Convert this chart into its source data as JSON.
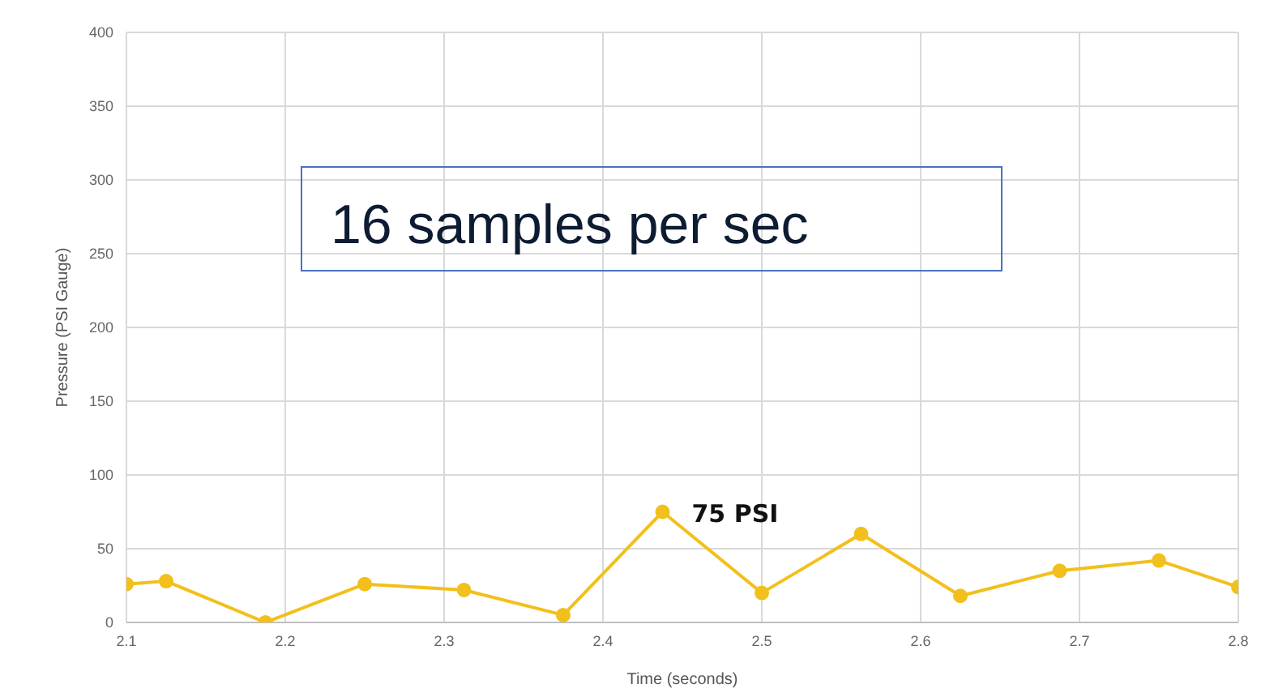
{
  "chart_data": {
    "type": "line",
    "xlabel": "Time (seconds)",
    "ylabel": "Pressure (PSI Gauge)",
    "annotations": [
      "16 samples per sec",
      {
        "text": "75 PSI",
        "x": 2.4375,
        "y": 75
      }
    ],
    "x": [
      2.1,
      2.125,
      2.1875,
      2.25,
      2.3125,
      2.375,
      2.4375,
      2.5,
      2.5625,
      2.625,
      2.6875,
      2.75,
      2.8
    ],
    "series": [
      {
        "color": "#f2c01c",
        "values": [
          26,
          28,
          0,
          26,
          22,
          5,
          75,
          20,
          60,
          18,
          35,
          42,
          24
        ]
      }
    ],
    "xlim": [
      2.1,
      2.8
    ],
    "xticks": [
      2.1,
      2.2,
      2.3,
      2.4,
      2.5,
      2.6,
      2.7,
      2.8
    ],
    "ylim": [
      0,
      400
    ],
    "yticks": [
      0,
      50,
      100,
      150,
      200,
      250,
      300,
      350,
      400
    ],
    "grid": true,
    "marker": "circle",
    "line_style": "solid",
    "legend": false
  }
}
